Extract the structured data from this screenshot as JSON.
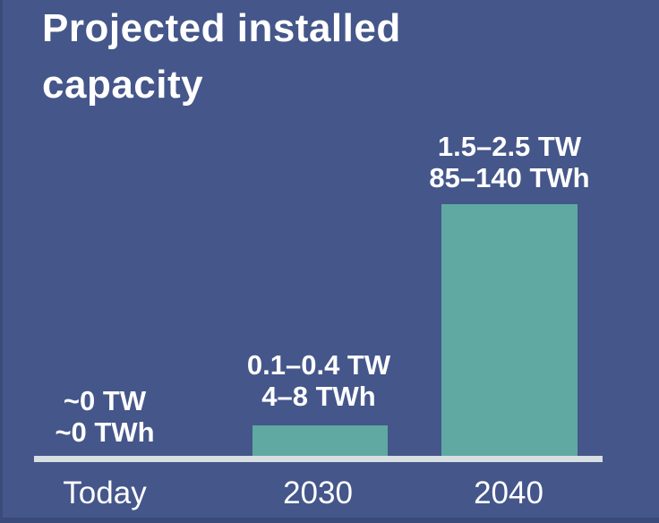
{
  "page": {
    "background_color": "#44568A",
    "edge_shadow_color": "#3A4B79"
  },
  "chart_data": {
    "type": "bar",
    "title": "Projected installed capacity",
    "categories": [
      "Today",
      "2030",
      "2040"
    ],
    "bars": [
      {
        "category": "Today",
        "power_label": "~0 TW",
        "energy_label": "~0 TWh",
        "power_tw_range": [
          0,
          0
        ],
        "energy_twh_range": [
          0,
          0
        ]
      },
      {
        "category": "2030",
        "power_label": "0.1–0.4 TW",
        "energy_label": "4–8 TWh",
        "power_tw_range": [
          0.1,
          0.4
        ],
        "energy_twh_range": [
          4,
          8
        ]
      },
      {
        "category": "2040",
        "power_label": "1.5–2.5 TW",
        "energy_label": "85–140 TWh",
        "power_tw_range": [
          1.5,
          2.5
        ],
        "energy_twh_range": [
          85,
          140
        ]
      }
    ],
    "xlabel": "",
    "ylabel": "",
    "legend": "none",
    "grid": false,
    "bar_color": "#5FA9A2",
    "background_color": "#44568A",
    "axis_line_color": "#D8DFE2",
    "text_color": "#FFFFFF"
  }
}
